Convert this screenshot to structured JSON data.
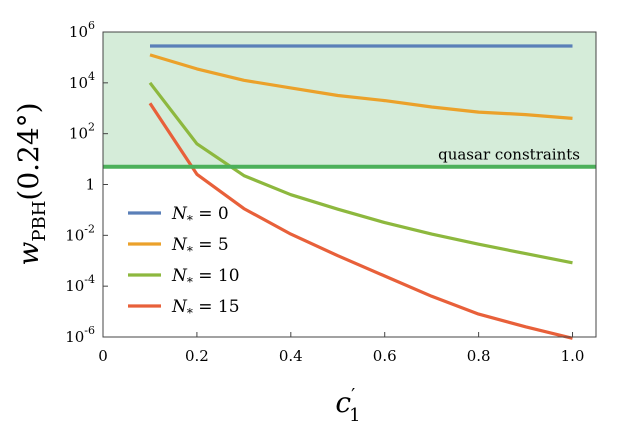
{
  "chart_data": {
    "type": "line",
    "xlabel": "c′₁",
    "ylabel": "w_PBH(0.24°)",
    "xlim": [
      0,
      1.05
    ],
    "ylim_log10": [
      -6,
      6
    ],
    "y_scale": "log",
    "grid": false,
    "legend_position": "bottom-left",
    "x_ticks": [
      {
        "value": 0,
        "label": "0"
      },
      {
        "value": 0.2,
        "label": "0.2"
      },
      {
        "value": 0.4,
        "label": "0.4"
      },
      {
        "value": 0.6,
        "label": "0.6"
      },
      {
        "value": 0.8,
        "label": "0.8"
      },
      {
        "value": 1.0,
        "label": "1.0"
      }
    ],
    "y_ticks": [
      {
        "exp": 6,
        "base": "10",
        "sup": "6"
      },
      {
        "exp": 4,
        "base": "10",
        "sup": "4"
      },
      {
        "exp": 2,
        "base": "10",
        "sup": "2"
      },
      {
        "exp": 0,
        "base": "1",
        "sup": ""
      },
      {
        "exp": -2,
        "base": "10",
        "sup": "-2"
      },
      {
        "exp": -4,
        "base": "10",
        "sup": "-4"
      },
      {
        "exp": -6,
        "base": "10",
        "sup": "-6"
      }
    ],
    "shaded_region": {
      "label": "quasar constraints",
      "threshold_log10": 0.7,
      "color": "#d5ecd9",
      "line_color": "#4cb05a"
    },
    "series": [
      {
        "name": "N* = 0",
        "legend_main": "N",
        "legend_sub": "*",
        "legend_rest": " = 0",
        "color": "#5a7fb8",
        "x": [
          0.1,
          1.0
        ],
        "log10_y": [
          5.45,
          5.45
        ]
      },
      {
        "name": "N* = 5",
        "legend_main": "N",
        "legend_sub": "*",
        "legend_rest": " = 5",
        "color": "#eba12a",
        "x": [
          0.1,
          0.2,
          0.3,
          0.4,
          0.5,
          0.6,
          0.7,
          0.8,
          0.9,
          1.0
        ],
        "log10_y": [
          5.1,
          4.55,
          4.1,
          3.8,
          3.5,
          3.3,
          3.05,
          2.85,
          2.75,
          2.6
        ]
      },
      {
        "name": "N* = 10",
        "legend_main": "N",
        "legend_sub": "*",
        "legend_rest": " = 10",
        "color": "#8db83e",
        "x": [
          0.1,
          0.2,
          0.3,
          0.4,
          0.5,
          0.6,
          0.7,
          0.8,
          0.9,
          1.0
        ],
        "log10_y": [
          4.0,
          1.6,
          0.35,
          -0.4,
          -0.97,
          -1.5,
          -1.95,
          -2.35,
          -2.72,
          -3.08
        ]
      },
      {
        "name": "N* = 15",
        "legend_main": "N",
        "legend_sub": "*",
        "legend_rest": " = 15",
        "color": "#e8603a",
        "x": [
          0.1,
          0.2,
          0.3,
          0.4,
          0.5,
          0.6,
          0.7,
          0.8,
          0.9,
          1.0
        ],
        "log10_y": [
          3.2,
          0.4,
          -0.95,
          -1.95,
          -2.8,
          -3.6,
          -4.4,
          -5.1,
          -5.6,
          -6.05
        ]
      }
    ]
  }
}
